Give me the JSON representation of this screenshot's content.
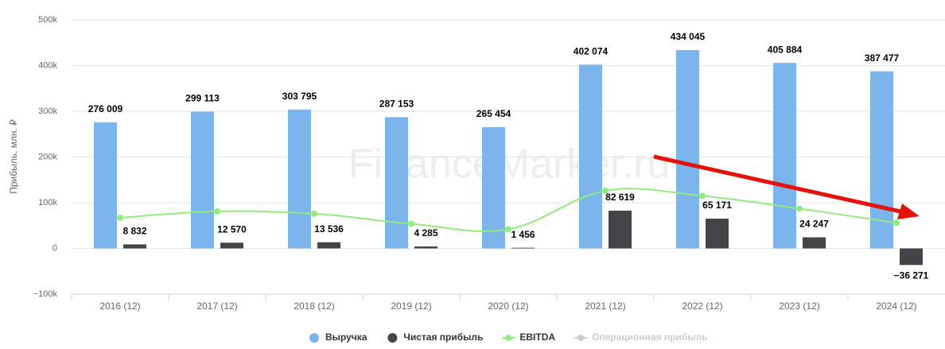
{
  "chart_data": {
    "type": "bar",
    "watermark": "FinanceMarker.ru",
    "y_label": "Прибыль, млн. ₽",
    "categories": [
      "2016 (12)",
      "2017 (12)",
      "2018 (12)",
      "2019 (12)",
      "2020 (12)",
      "2021 (12)",
      "2022 (12)",
      "2023 (12)",
      "2024 (12)"
    ],
    "series": [
      {
        "name": "Выручка",
        "type": "bar",
        "color": "#7cb5ec",
        "values": [
          276009,
          299113,
          303795,
          287153,
          265454,
          402074,
          434045,
          405884,
          387477
        ],
        "value_labels": [
          "276 009",
          "299 113",
          "303 795",
          "287 153",
          "265 454",
          "402 074",
          "434 045",
          "405 884",
          "387 477"
        ]
      },
      {
        "name": "Чистая прибыль",
        "type": "bar",
        "color": "#434348",
        "values": [
          8832,
          12570,
          13536,
          4285,
          1456,
          82619,
          65171,
          24247,
          -36271
        ],
        "value_labels": [
          "8 832",
          "12 570",
          "13 536",
          "4 285",
          "1 456",
          "82 619",
          "65 171",
          "24 247",
          "−36 271"
        ]
      },
      {
        "name": "EBITDA",
        "type": "line",
        "color": "#90ed7d",
        "values": [
          67000,
          81000,
          76000,
          54000,
          42000,
          126000,
          115000,
          87000,
          56000
        ]
      }
    ],
    "hidden_series": [
      {
        "name": "Операционная прибыль",
        "color": "#cccccc"
      }
    ],
    "ylim": [
      -100000,
      500000
    ],
    "yticks": [
      {
        "value": -100000,
        "label": "−100k"
      },
      {
        "value": 0,
        "label": "0"
      },
      {
        "value": 100000,
        "label": "100k"
      },
      {
        "value": 200000,
        "label": "200k"
      },
      {
        "value": 300000,
        "label": "300k"
      },
      {
        "value": 400000,
        "label": "400k"
      },
      {
        "value": 500000,
        "label": "500k"
      }
    ],
    "grid": true
  }
}
